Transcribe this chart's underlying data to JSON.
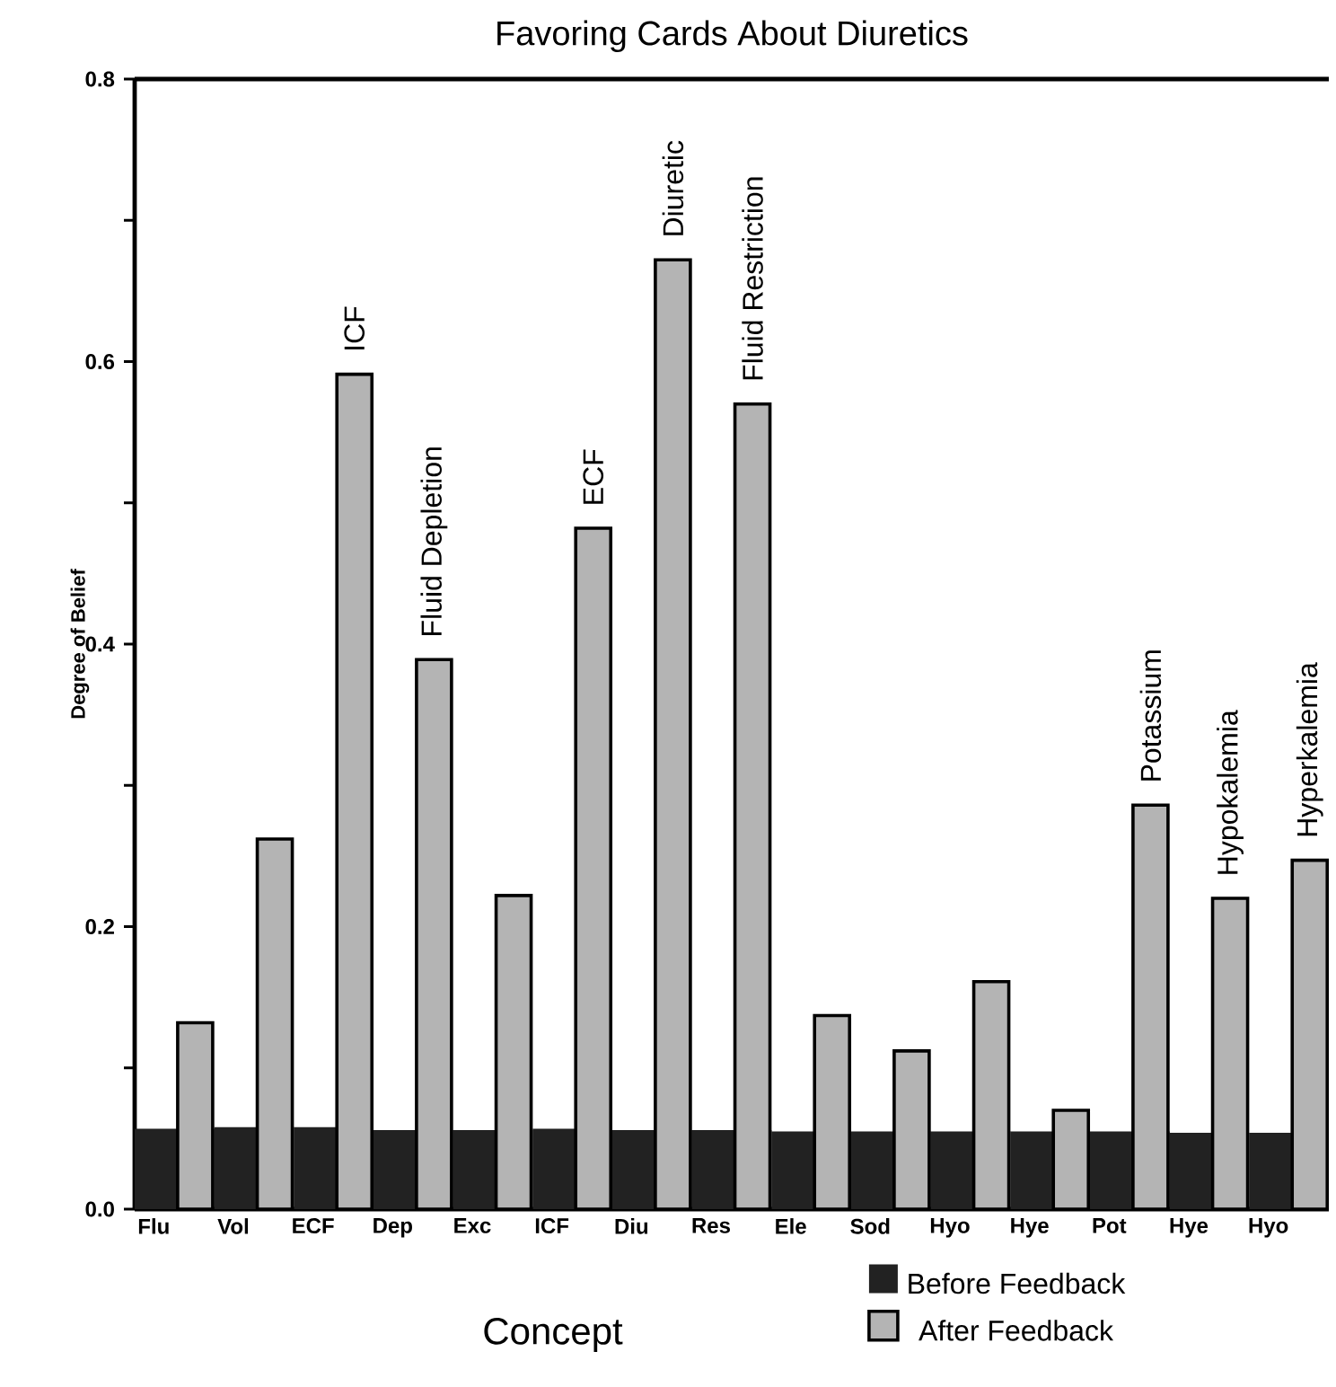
{
  "chart_data": {
    "type": "bar",
    "title": "Favoring Cards About Diuretics",
    "xlabel": "Concept",
    "ylabel": "Degree of Belief",
    "categories": [
      "Flu",
      "Vol",
      "ECF",
      "Dep",
      "Exc",
      "ICF",
      "Diu",
      "Res",
      "Ele",
      "Sod",
      "Hyo",
      "Hye",
      "Pot",
      "Hye",
      "Hyo"
    ],
    "series": [
      {
        "name": "Before Feedback",
        "color": "#222222",
        "values": [
          0.057,
          0.058,
          0.058,
          0.056,
          0.056,
          0.057,
          0.056,
          0.056,
          0.055,
          0.055,
          0.055,
          0.055,
          0.055,
          0.054,
          0.054
        ]
      },
      {
        "name": "After Feedback",
        "color": "#b4b4b4",
        "values": [
          0.132,
          0.262,
          0.591,
          0.389,
          0.222,
          0.482,
          0.672,
          0.57,
          0.137,
          0.112,
          0.161,
          0.07,
          0.286,
          0.22,
          0.247
        ],
        "value_labels": [
          null,
          null,
          "ICF",
          "Fluid Depletion",
          null,
          "ECF",
          "Diuretic",
          "Fluid Restriction",
          null,
          null,
          null,
          null,
          "Potassium",
          "Hypokalemia",
          "Hyperkalemia"
        ]
      }
    ],
    "ylim": [
      0,
      0.8
    ],
    "yticks": [
      {
        "value": 0,
        "label": "0.0"
      },
      {
        "value": 0.1,
        "label": null
      },
      {
        "value": 0.2,
        "label": "0.2"
      },
      {
        "value": 0.3,
        "label": null
      },
      {
        "value": 0.4,
        "label": "0.4"
      },
      {
        "value": 0.5,
        "label": null
      },
      {
        "value": 0.6,
        "label": "0.6"
      },
      {
        "value": 0.7,
        "label": null
      },
      {
        "value": 0.8,
        "label": "0.8"
      }
    ],
    "legend": "bottom right",
    "grid": false
  }
}
